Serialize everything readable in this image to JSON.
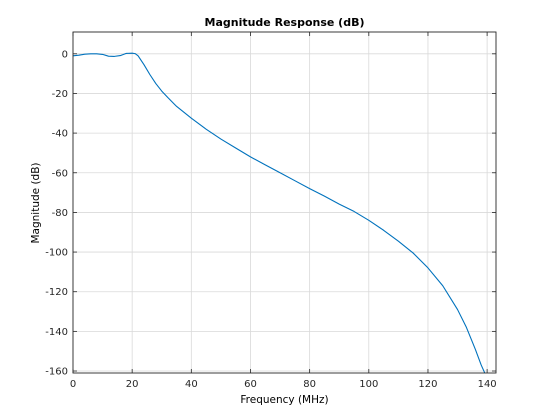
{
  "chart_data": {
    "type": "line",
    "title": "Magnitude Response (dB)",
    "xlabel": "Frequency (MHz)",
    "ylabel": "Magnitude (dB)",
    "xlim": [
      0,
      143
    ],
    "ylim": [
      -161,
      11
    ],
    "xticks": [
      0,
      20,
      40,
      60,
      80,
      100,
      120,
      140
    ],
    "yticks": [
      0,
      -20,
      -40,
      -60,
      -80,
      -100,
      -120,
      -140,
      -160
    ],
    "grid": true,
    "series": [
      {
        "color": "#0072bd",
        "x": [
          0,
          2,
          4,
          6,
          8,
          10,
          12,
          14,
          16,
          18,
          20,
          21,
          22,
          24,
          26,
          28,
          30,
          32,
          35,
          40,
          45,
          50,
          55,
          60,
          65,
          70,
          75,
          80,
          85,
          90,
          95,
          100,
          105,
          110,
          115,
          120,
          125,
          130,
          133,
          136,
          138,
          139.5
        ],
        "y": [
          -1,
          -0.7,
          -0.2,
          0,
          0,
          -0.3,
          -1.2,
          -1.3,
          -0.9,
          0.2,
          0.3,
          0.1,
          -1,
          -5.5,
          -10.5,
          -15,
          -18.8,
          -22,
          -26.5,
          -32.5,
          -38,
          -43,
          -47.5,
          -52,
          -56,
          -60,
          -64,
          -68,
          -71.8,
          -75.8,
          -79.5,
          -84,
          -89,
          -94.5,
          -100.5,
          -108,
          -117,
          -129,
          -138,
          -149,
          -157,
          -162
        ]
      }
    ]
  }
}
